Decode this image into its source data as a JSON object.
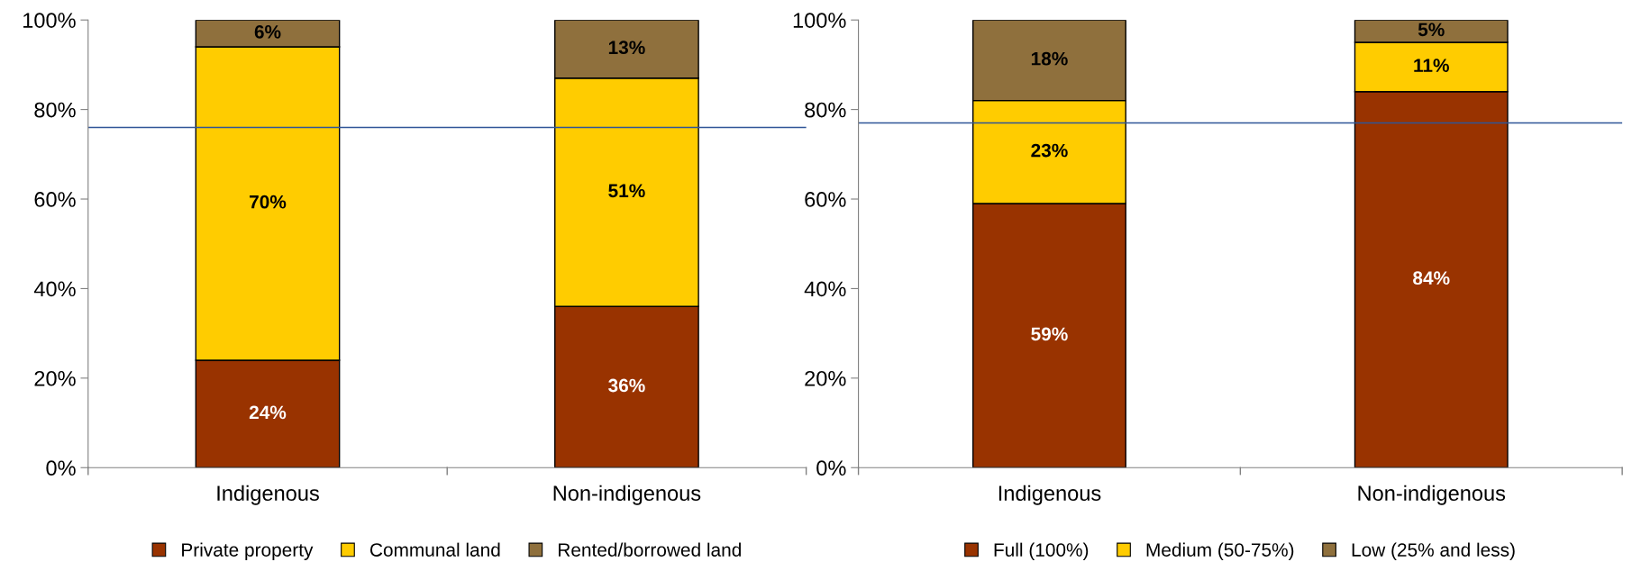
{
  "chart_data": [
    {
      "type": "bar",
      "stacked": true,
      "categories": [
        "Indigenous",
        "Non-indigenous"
      ],
      "series": [
        {
          "name": "Private property",
          "color": "#993300",
          "values": [
            24,
            36
          ],
          "value_labels": [
            "24%",
            "36%"
          ]
        },
        {
          "name": "Communal land",
          "color": "#ffcc00",
          "values": [
            70,
            51
          ],
          "value_labels": [
            "70%",
            "51%"
          ]
        },
        {
          "name": "Rented/borrowed land",
          "color": "#8f703d",
          "values": [
            6,
            13
          ],
          "value_labels": [
            "6%",
            "13%"
          ]
        }
      ],
      "ylim": [
        0,
        100
      ],
      "yticks": [
        {
          "value": 0,
          "label": "0%"
        },
        {
          "value": 20,
          "label": "20%"
        },
        {
          "value": 40,
          "label": "40%"
        },
        {
          "value": 60,
          "label": "60%"
        },
        {
          "value": 80,
          "label": "80%"
        },
        {
          "value": 100,
          "label": "100%"
        }
      ],
      "ref_lines": [
        {
          "axis": "y",
          "value": 76,
          "label": null,
          "color": "#2f5597"
        }
      ],
      "grid": false,
      "legend": "bottom"
    },
    {
      "type": "bar",
      "stacked": true,
      "categories": [
        "Indigenous",
        "Non-indigenous"
      ],
      "series": [
        {
          "name": "Full (100%)",
          "color": "#993300",
          "values": [
            59,
            84
          ],
          "value_labels": [
            "59%",
            "84%"
          ]
        },
        {
          "name": "Medium (50-75%)",
          "color": "#ffcc00",
          "values": [
            23,
            11
          ],
          "value_labels": [
            "23%",
            "11%"
          ]
        },
        {
          "name": "Low (25% and less)",
          "color": "#8f703d",
          "values": [
            18,
            5
          ],
          "value_labels": [
            "18%",
            "5%"
          ]
        }
      ],
      "ylim": [
        0,
        100
      ],
      "yticks": [
        {
          "value": 0,
          "label": "0%"
        },
        {
          "value": 20,
          "label": "20%"
        },
        {
          "value": 40,
          "label": "40%"
        },
        {
          "value": 60,
          "label": "60%"
        },
        {
          "value": 80,
          "label": "80%"
        },
        {
          "value": 100,
          "label": "100%"
        }
      ],
      "ref_lines": [
        {
          "axis": "y",
          "value": 77,
          "label": null,
          "color": "#2f5597"
        }
      ],
      "grid": false,
      "legend": "bottom"
    }
  ]
}
